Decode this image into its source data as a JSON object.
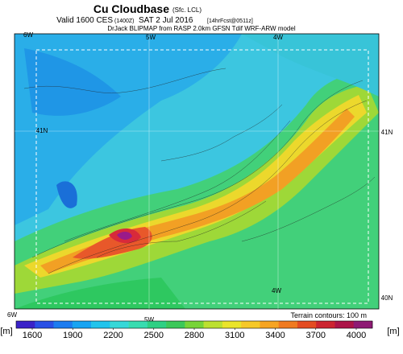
{
  "header": {
    "title": "Cu Cloudbase",
    "title_note": "(Sfc. LCL)",
    "valid": "Valid 1600 CES",
    "valid_note": "(1400Z)",
    "date": "SAT 2 Jul 2016",
    "forecast": "[14hrFcst@0511z]",
    "model": "DrJack BLIPMAP from RASP 2.0km GFSN Tdif WRF-ARW model"
  },
  "map": {
    "lon_labels": [
      "6W",
      "5W",
      "4W"
    ],
    "lat_labels": [
      "41N",
      "40N"
    ],
    "contour_note": "Terrain contours: 100 m"
  },
  "colorbar": {
    "unit": "[m]",
    "ticks": [
      1600,
      1900,
      2200,
      2500,
      2800,
      3100,
      3400,
      3700,
      4000
    ]
  }
}
